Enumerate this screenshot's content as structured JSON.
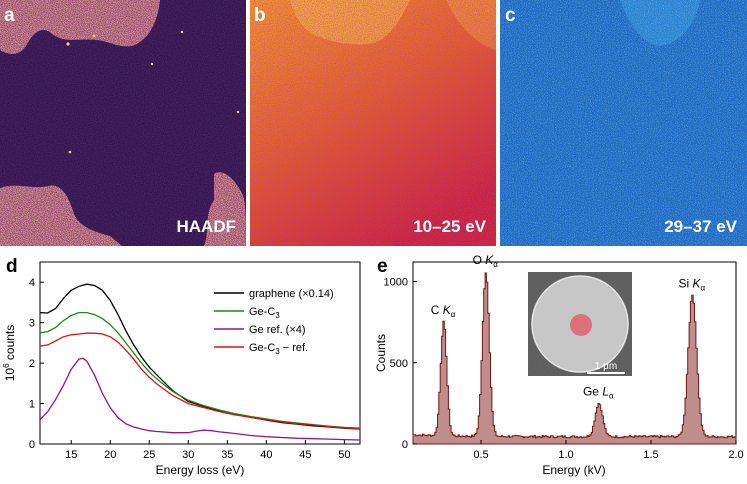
{
  "panels": {
    "a": {
      "letter": "a",
      "label": "HAADF"
    },
    "b": {
      "letter": "b",
      "label": "10–25 eV"
    },
    "c": {
      "letter": "c",
      "label": "29–37 eV"
    },
    "d": {
      "letter": "d"
    },
    "e": {
      "letter": "e"
    }
  },
  "colors": {
    "haadf_bg": "#230a3d",
    "haadf_bright": "#f2b24a",
    "eels_orange": "#ec7f1c",
    "eels_red": "#c8203c",
    "eels_blue": "#1565c6",
    "eels_cyan": "#37a8f0",
    "graphene": "#000000",
    "gec3": "#1a8a1a",
    "geref": "#8a1a8a",
    "diff": "#e01010",
    "eds_fill": "#b07070",
    "eds_line": "#7a1414",
    "probe": "#e06070"
  },
  "chart_data": [
    {
      "type": "line",
      "panel": "d",
      "xlabel": "Energy loss (eV)",
      "ylabel_prefix": "10",
      "ylabel_exp": "6",
      "ylabel_suffix": " counts",
      "xlim": [
        11,
        52
      ],
      "ylim": [
        0,
        4.5
      ],
      "xticks": [
        15,
        20,
        25,
        30,
        35,
        40,
        45,
        50
      ],
      "yticks": [
        0,
        1,
        2,
        3,
        4
      ],
      "legend_position": "upper-right",
      "series": [
        {
          "name": "graphene (×0.14)",
          "name_base": "graphene (×0.14)",
          "name_sub": "",
          "name_after": "",
          "color": "#000000",
          "points": [
            [
              11,
              3.25
            ],
            [
              12,
              3.24
            ],
            [
              13,
              3.35
            ],
            [
              14,
              3.6
            ],
            [
              15,
              3.8
            ],
            [
              16,
              3.9
            ],
            [
              17,
              3.95
            ],
            [
              18,
              3.92
            ],
            [
              19,
              3.8
            ],
            [
              20,
              3.55
            ],
            [
              21,
              3.2
            ],
            [
              22,
              2.8
            ],
            [
              23,
              2.45
            ],
            [
              24,
              2.15
            ],
            [
              25,
              1.9
            ],
            [
              26,
              1.7
            ],
            [
              28,
              1.32
            ],
            [
              30,
              1.05
            ],
            [
              32,
              0.93
            ],
            [
              34,
              0.82
            ],
            [
              36,
              0.74
            ],
            [
              38,
              0.66
            ],
            [
              40,
              0.59
            ],
            [
              42,
              0.53
            ],
            [
              44,
              0.49
            ],
            [
              46,
              0.45
            ],
            [
              48,
              0.42
            ],
            [
              50,
              0.39
            ],
            [
              52,
              0.37
            ]
          ]
        },
        {
          "name": "Ge-C3",
          "name_base": "Ge-C",
          "name_sub": "3",
          "name_after": "",
          "color": "#1a8a1a",
          "points": [
            [
              11,
              2.75
            ],
            [
              12,
              2.78
            ],
            [
              13,
              2.88
            ],
            [
              14,
              3.05
            ],
            [
              15,
              3.18
            ],
            [
              16,
              3.25
            ],
            [
              17,
              3.25
            ],
            [
              18,
              3.2
            ],
            [
              19,
              3.1
            ],
            [
              20,
              2.95
            ],
            [
              21,
              2.75
            ],
            [
              22,
              2.5
            ],
            [
              23,
              2.25
            ],
            [
              24,
              2.0
            ],
            [
              25,
              1.78
            ],
            [
              26,
              1.6
            ],
            [
              28,
              1.3
            ],
            [
              30,
              1.08
            ],
            [
              32,
              0.95
            ],
            [
              34,
              0.84
            ],
            [
              36,
              0.75
            ],
            [
              38,
              0.68
            ],
            [
              40,
              0.62
            ],
            [
              42,
              0.56
            ],
            [
              44,
              0.52
            ],
            [
              46,
              0.48
            ],
            [
              48,
              0.44
            ],
            [
              50,
              0.41
            ],
            [
              52,
              0.39
            ]
          ]
        },
        {
          "name": "Ge ref. (×4)",
          "name_base": "Ge ref. (×4)",
          "name_sub": "",
          "name_after": "",
          "color": "#8a1a8a",
          "points": [
            [
              11,
              0.6
            ],
            [
              12,
              0.8
            ],
            [
              13,
              1.1
            ],
            [
              14,
              1.45
            ],
            [
              15,
              1.85
            ],
            [
              16,
              2.1
            ],
            [
              16.5,
              2.12
            ],
            [
              17,
              2.05
            ],
            [
              18,
              1.7
            ],
            [
              19,
              1.25
            ],
            [
              20,
              0.9
            ],
            [
              21,
              0.65
            ],
            [
              22,
              0.5
            ],
            [
              23,
              0.42
            ],
            [
              24,
              0.37
            ],
            [
              25,
              0.33
            ],
            [
              26,
              0.31
            ],
            [
              28,
              0.28
            ],
            [
              30,
              0.28
            ],
            [
              31,
              0.32
            ],
            [
              32,
              0.34
            ],
            [
              33,
              0.33
            ],
            [
              34,
              0.3
            ],
            [
              36,
              0.26
            ],
            [
              38,
              0.21
            ],
            [
              40,
              0.18
            ],
            [
              42,
              0.16
            ],
            [
              44,
              0.14
            ],
            [
              46,
              0.13
            ],
            [
              48,
              0.12
            ],
            [
              50,
              0.11
            ],
            [
              52,
              0.1
            ]
          ]
        },
        {
          "name": "Ge-C3 − ref.",
          "name_base": "Ge-C",
          "name_sub": "3",
          "name_after": " − ref.",
          "color": "#e01010",
          "points": [
            [
              11,
              2.42
            ],
            [
              12,
              2.45
            ],
            [
              13,
              2.55
            ],
            [
              14,
              2.65
            ],
            [
              15,
              2.7
            ],
            [
              16,
              2.72
            ],
            [
              17,
              2.74
            ],
            [
              18,
              2.74
            ],
            [
              19,
              2.72
            ],
            [
              20,
              2.65
            ],
            [
              21,
              2.52
            ],
            [
              22,
              2.32
            ],
            [
              23,
              2.1
            ],
            [
              24,
              1.85
            ],
            [
              25,
              1.65
            ],
            [
              26,
              1.48
            ],
            [
              28,
              1.2
            ],
            [
              30,
              1.0
            ],
            [
              32,
              0.9
            ],
            [
              34,
              0.8
            ],
            [
              36,
              0.72
            ],
            [
              38,
              0.66
            ],
            [
              40,
              0.6
            ],
            [
              42,
              0.55
            ],
            [
              44,
              0.5
            ],
            [
              46,
              0.47
            ],
            [
              48,
              0.43
            ],
            [
              50,
              0.4
            ],
            [
              52,
              0.38
            ]
          ]
        }
      ]
    },
    {
      "type": "area",
      "panel": "e",
      "xlabel": "Energy (kV)",
      "ylabel": "Counts",
      "xlim": [
        0.1,
        2.0
      ],
      "ylim": [
        0,
        1120
      ],
      "xticks": [
        0.5,
        1.0,
        1.5,
        2.0
      ],
      "xtick_labels": [
        "0.5",
        "1.0",
        "1.5",
        "2.0"
      ],
      "yticks": [
        0,
        500,
        1000
      ],
      "baseline": 45,
      "peaks": [
        {
          "center": 0.277,
          "height": 700,
          "width": 0.018,
          "label_base": "C ",
          "label_italic": "K",
          "label_sub": "α"
        },
        {
          "center": 0.525,
          "height": 1010,
          "width": 0.02,
          "label_base": "O ",
          "label_italic": "K",
          "label_sub": "α"
        },
        {
          "center": 1.19,
          "height": 205,
          "width": 0.022,
          "label_base": "Ge ",
          "label_italic": "L",
          "label_sub": "α"
        },
        {
          "center": 1.74,
          "height": 870,
          "width": 0.025,
          "label_base": "Si ",
          "label_italic": "K",
          "label_sub": "α"
        }
      ],
      "inset": {
        "scalebar": "1 μm"
      }
    }
  ]
}
